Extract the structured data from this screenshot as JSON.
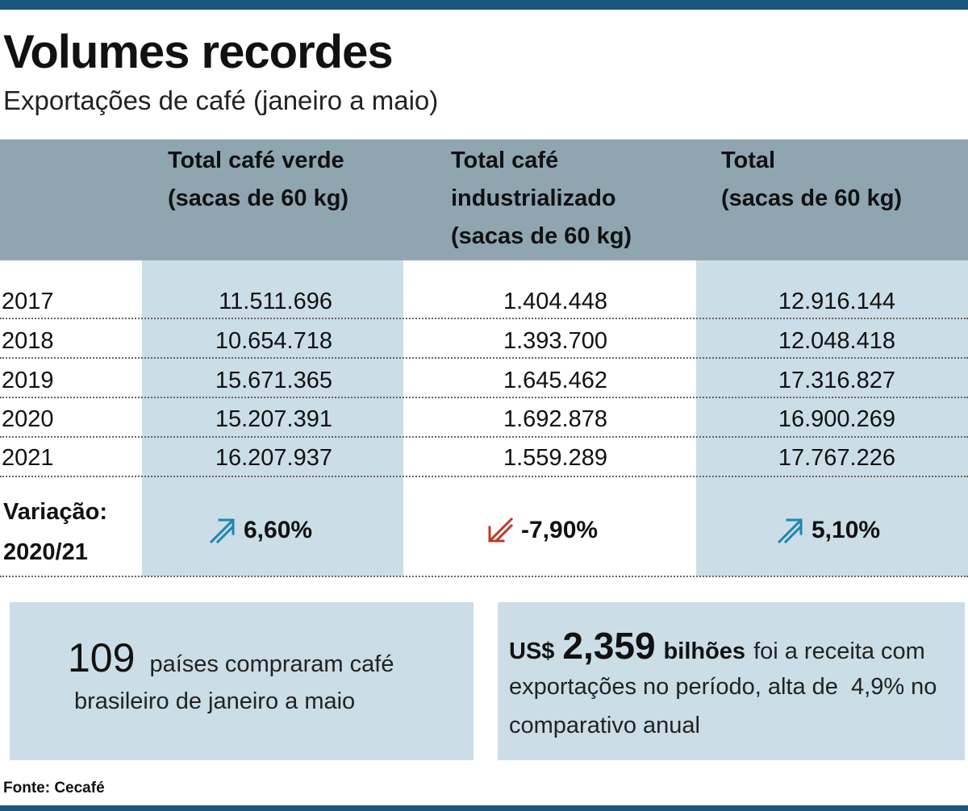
{
  "header": {
    "title": "Volumes recordes",
    "subtitle": "Exportações de café (janeiro a maio)"
  },
  "chart_data": {
    "type": "table",
    "columns": [
      {
        "lines": [
          "Total café verde",
          "(sacas de 60 kg)"
        ]
      },
      {
        "lines": [
          "Total café",
          "industrializado",
          "(sacas de 60 kg)"
        ]
      },
      {
        "lines": [
          "Total",
          "(sacas de 60 kg)"
        ]
      }
    ],
    "rows": [
      {
        "year": "2017",
        "values": [
          "11.511.696",
          "1.404.448",
          "12.916.144"
        ]
      },
      {
        "year": "2018",
        "values": [
          "10.654.718",
          "1.393.700",
          "12.048.418"
        ]
      },
      {
        "year": "2019",
        "values": [
          "15.671.365",
          "1.645.462",
          "17.316.827"
        ]
      },
      {
        "year": "2020",
        "values": [
          "15.207.391",
          "1.692.878",
          "16.900.269"
        ]
      },
      {
        "year": "2021",
        "values": [
          "16.207.937",
          "1.559.289",
          "17.767.226"
        ]
      }
    ],
    "variation": {
      "label_lines": [
        "Variação:",
        "2020/21"
      ],
      "values": [
        {
          "text": "6,60%",
          "direction": "up",
          "color": "#1d86b0"
        },
        {
          "text": "-7,90%",
          "direction": "down",
          "color": "#c0392b"
        },
        {
          "text": "5,10%",
          "direction": "up",
          "color": "#1d86b0"
        }
      ]
    }
  },
  "callouts": {
    "countries": {
      "number": "109",
      "line1": "países compraram café",
      "line2": "brasileiro de janeiro a maio"
    },
    "revenue": {
      "currency": "US$",
      "number": "2,359",
      "unit": "bilhões",
      "line1_rest": "foi a receita com",
      "line2": "exportações no período, alta de  4,9% no",
      "line3": "comparativo anual"
    }
  },
  "footer": {
    "source": "Fonte: Cecafé"
  },
  "colors": {
    "bar": "#19577e",
    "header_bg": "#8fa6b1",
    "column_bg": "#cbdde6",
    "up_arrow": "#1d86b0",
    "down_arrow": "#c0392b"
  }
}
